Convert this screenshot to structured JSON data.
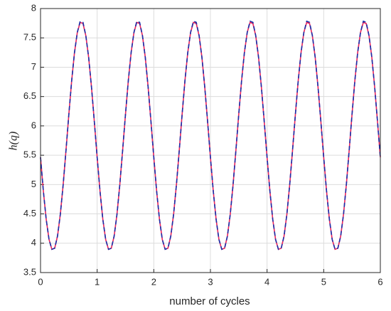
{
  "chart_data": {
    "type": "line",
    "xlabel": "number of cycles",
    "ylabel": "h(q)",
    "x": [
      0,
      0.05,
      0.1,
      0.15,
      0.2,
      0.25,
      0.3,
      0.35,
      0.4,
      0.45,
      0.5,
      0.55,
      0.6,
      0.65,
      0.7,
      0.75,
      0.8,
      0.85,
      0.9,
      0.95,
      1,
      1.05,
      1.1,
      1.15,
      1.2,
      1.25,
      1.3,
      1.35,
      1.4,
      1.45,
      1.5,
      1.55,
      1.6,
      1.65,
      1.7,
      1.75,
      1.8,
      1.85,
      1.9,
      1.95,
      2,
      2.05,
      2.1,
      2.15,
      2.2,
      2.25,
      2.3,
      2.35,
      2.4,
      2.45,
      2.5,
      2.55,
      2.6,
      2.65,
      2.7,
      2.75,
      2.8,
      2.85,
      2.9,
      2.95,
      3,
      3.05,
      3.1,
      3.15,
      3.2,
      3.25,
      3.3,
      3.35,
      3.4,
      3.45,
      3.5,
      3.55,
      3.6,
      3.65,
      3.7,
      3.75,
      3.8,
      3.85,
      3.9,
      3.95,
      4,
      4.05,
      4.1,
      4.15,
      4.2,
      4.25,
      4.3,
      4.35,
      4.4,
      4.45,
      4.5,
      4.55,
      4.6,
      4.65,
      4.7,
      4.75,
      4.8,
      4.85,
      4.9,
      4.95,
      5,
      5.05,
      5.1,
      5.15,
      5.2,
      5.25,
      5.3,
      5.35,
      5.4,
      5.45,
      5.5,
      5.55,
      5.6,
      5.65,
      5.7,
      5.75,
      5.8,
      5.85,
      5.9,
      5.95,
      6
    ],
    "series": [
      {
        "color": "#e8245c",
        "dash": false,
        "values": [
          5.465,
          4.89,
          4.409,
          4.065,
          3.896,
          3.915,
          4.122,
          4.494,
          5.0,
          5.586,
          6.195,
          6.77,
          7.251,
          7.595,
          7.764,
          7.745,
          7.538,
          7.166,
          6.66,
          6.074,
          5.465,
          4.89,
          4.409,
          4.065,
          3.896,
          3.915,
          4.122,
          4.494,
          5.0,
          5.586,
          6.195,
          6.77,
          7.251,
          7.595,
          7.764,
          7.745,
          7.538,
          7.166,
          6.66,
          6.074,
          5.465,
          4.89,
          4.409,
          4.065,
          3.896,
          3.915,
          4.122,
          4.494,
          5.0,
          5.586,
          6.195,
          6.77,
          7.251,
          7.595,
          7.764,
          7.745,
          7.538,
          7.166,
          6.66,
          6.074,
          5.465,
          4.89,
          4.409,
          4.065,
          3.896,
          3.915,
          4.122,
          4.494,
          5.0,
          5.586,
          6.195,
          6.77,
          7.251,
          7.595,
          7.764,
          7.745,
          7.538,
          7.166,
          6.66,
          6.074,
          5.465,
          4.89,
          4.409,
          4.065,
          3.896,
          3.915,
          4.122,
          4.494,
          5.0,
          5.586,
          6.195,
          6.77,
          7.251,
          7.595,
          7.764,
          7.745,
          7.538,
          7.166,
          6.66,
          6.074,
          5.465,
          4.89,
          4.409,
          4.065,
          3.896,
          3.915,
          4.122,
          4.494,
          5.0,
          5.586,
          6.195,
          6.77,
          7.251,
          7.595,
          7.764,
          7.745,
          7.538,
          7.166,
          6.66,
          6.074,
          5.465
        ]
      },
      {
        "color": "#1a2fa8",
        "dash": true,
        "values": [
          5.465,
          4.89,
          4.409,
          4.065,
          3.896,
          3.915,
          4.122,
          4.494,
          5.0,
          5.586,
          6.195,
          6.77,
          7.251,
          7.595,
          7.784,
          7.765,
          7.538,
          7.166,
          6.66,
          6.074,
          5.465,
          4.89,
          4.409,
          4.065,
          3.896,
          3.915,
          4.122,
          4.494,
          5.0,
          5.586,
          6.195,
          6.77,
          7.251,
          7.595,
          7.784,
          7.765,
          7.538,
          7.166,
          6.66,
          6.074,
          5.465,
          4.89,
          4.409,
          4.065,
          3.896,
          3.915,
          4.122,
          4.494,
          5.0,
          5.586,
          6.195,
          6.77,
          7.251,
          7.595,
          7.784,
          7.765,
          7.538,
          7.166,
          6.66,
          6.074,
          5.465,
          4.89,
          4.409,
          4.065,
          3.896,
          3.915,
          4.122,
          4.494,
          5.0,
          5.586,
          6.195,
          6.77,
          7.251,
          7.595,
          7.784,
          7.765,
          7.538,
          7.166,
          6.66,
          6.074,
          5.465,
          4.89,
          4.409,
          4.065,
          3.896,
          3.915,
          4.122,
          4.494,
          5.0,
          5.586,
          6.195,
          6.77,
          7.251,
          7.595,
          7.784,
          7.765,
          7.538,
          7.166,
          6.66,
          6.074,
          5.465,
          4.89,
          4.409,
          4.065,
          3.896,
          3.915,
          4.122,
          4.494,
          5.0,
          5.586,
          6.195,
          6.77,
          7.251,
          7.595,
          7.784,
          7.765,
          7.538,
          7.166,
          6.66,
          6.074,
          5.465
        ]
      }
    ],
    "xlim": [
      0,
      6
    ],
    "xticks": [
      0,
      1,
      2,
      3,
      4,
      5,
      6
    ],
    "ylim": [
      3.5,
      8
    ],
    "yticks": [
      3.5,
      4,
      4.5,
      5,
      5.5,
      6,
      6.5,
      7,
      7.5,
      8
    ],
    "grid": true
  }
}
